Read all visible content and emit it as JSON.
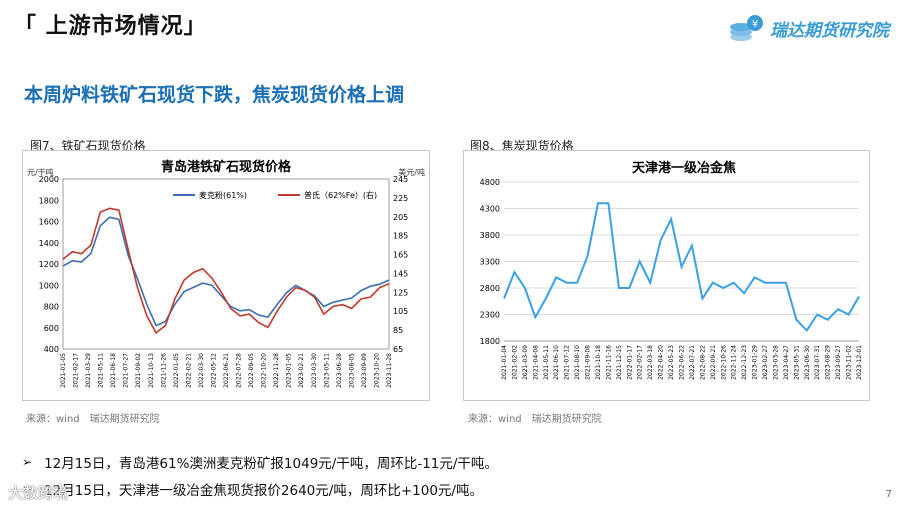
{
  "header": {
    "section_title": "「 上游市场情况」",
    "brand_name": "瑞达期货研究院"
  },
  "headline": "本周炉料铁矿石现货下跌，焦炭现货价格上调",
  "fig7": {
    "label": "图7、铁矿石现货价格",
    "source": "来源：wind　瑞达期货研究院"
  },
  "fig8": {
    "label": "图8、焦炭现货价格",
    "source": "来源：wind　瑞达期货研究院"
  },
  "bullets": [
    "12月15日，青岛港61%澳洲麦克粉矿报1049元/干吨，周环比-11元/干吨。",
    "12月15日，天津港一级冶金焦现货报价2640元/吨，周环比+100元/吨。"
  ],
  "page_number": "7",
  "watermark": "大数跨境",
  "chart_data": [
    {
      "type": "line",
      "title": "青岛港铁矿石现货价格",
      "ylabel": "元/干吨",
      "y2label": "美元/吨",
      "ylim": [
        400,
        2000
      ],
      "y2lim": [
        65,
        245
      ],
      "yticks": [
        400,
        600,
        800,
        1000,
        1200,
        1400,
        1600,
        1800,
        2000
      ],
      "y2ticks": [
        65,
        85,
        105,
        125,
        145,
        165,
        185,
        205,
        225,
        245
      ],
      "legend_position": "top",
      "grid": false,
      "x": [
        "2021-01-05",
        "2021-02-05",
        "2021-03-05",
        "2021-04-05",
        "2021-05-05",
        "2021-06-05",
        "2021-07-05",
        "2021-08-05",
        "2021-09-05",
        "2021-10-05",
        "2021-11-05",
        "2021-12-05",
        "2022-01-05",
        "2022-02-05",
        "2022-03-05",
        "2022-04-05",
        "2022-05-05",
        "2022-06-05",
        "2022-07-05",
        "2022-08-05",
        "2022-09-05",
        "2022-10-05",
        "2022-11-05",
        "2022-12-05",
        "2023-01-05",
        "2023-02-05",
        "2023-03-05",
        "2023-04-05",
        "2023-05-05",
        "2023-06-05",
        "2023-07-05",
        "2023-08-05",
        "2023-09-05",
        "2023-10-05",
        "2023-11-05",
        "2023-12-15"
      ],
      "xticks": [
        "2021-01-05",
        "2021-02-17",
        "2021-03-29",
        "2021-05-11",
        "2021-06-18",
        "2021-07-27",
        "2021-09-02",
        "2021-10-13",
        "2021-11-26",
        "2022-01-05",
        "2022-02-21",
        "2022-03-30",
        "2022-05-12",
        "2022-06-21",
        "2022-07-28",
        "2022-09-05",
        "2022-10-20",
        "2022-11-28",
        "2023-01-05",
        "2023-02-21",
        "2023-03-30",
        "2023-05-11",
        "2023-06-28",
        "2023-08-05",
        "2023-09-09",
        "2023-10-20",
        "2023-11-28"
      ],
      "series": [
        {
          "name": "麦克粉(61%)",
          "color": "#3a6fb5",
          "axis": "left",
          "values": [
            1180,
            1230,
            1220,
            1300,
            1560,
            1640,
            1620,
            1280,
            1060,
            820,
            620,
            660,
            820,
            940,
            980,
            1020,
            1000,
            900,
            800,
            760,
            770,
            720,
            700,
            820,
            930,
            1000,
            950,
            900,
            800,
            840,
            860,
            880,
            950,
            990,
            1010,
            1049
          ]
        },
        {
          "name": "普氏（62%Fe）(右)",
          "color": "#c0392b",
          "axis": "right",
          "values": [
            160,
            168,
            166,
            175,
            210,
            214,
            212,
            170,
            130,
            100,
            82,
            90,
            118,
            138,
            146,
            150,
            140,
            125,
            108,
            100,
            102,
            93,
            88,
            105,
            120,
            130,
            127,
            120,
            102,
            110,
            112,
            108,
            118,
            120,
            130,
            134
          ]
        }
      ]
    },
    {
      "type": "line",
      "title": "天津港一级冶金焦",
      "ylim": [
        1800,
        4800
      ],
      "yticks": [
        1800,
        2300,
        2800,
        3300,
        3800,
        4300,
        4800
      ],
      "grid": true,
      "x": [
        "2021-01-04",
        "2021-02-02",
        "2021-03-09",
        "2021-04-08",
        "2021-05-11",
        "2021-06-10",
        "2021-07-12",
        "2021-08-10",
        "2021-09-08",
        "2021-10-18",
        "2021-11-16",
        "2021-12-15",
        "2022-01-17",
        "2022-02-17",
        "2022-03-18",
        "2022-04-20",
        "2022-05-23",
        "2022-06-22",
        "2022-07-21",
        "2022-08-22",
        "2022-09-21",
        "2022-10-26",
        "2022-11-24",
        "2022-12-23",
        "2023-01-29",
        "2023-02-27",
        "2023-03-28",
        "2023-04-27",
        "2023-05-31",
        "2023-06-30",
        "2023-07-31",
        "2023-08-29",
        "2023-09-27",
        "2023-11-02",
        "2023-12-01"
      ],
      "xticks": [
        "2021-01-04",
        "2021-02-02",
        "2021-03-09",
        "2021-04-08",
        "2021-05-11",
        "2021-06-10",
        "2021-07-12",
        "2021-08-10",
        "2021-09-08",
        "2021-10-18",
        "2021-11-16",
        "2021-12-15",
        "2022-01-17",
        "2022-02-17",
        "2022-03-18",
        "2022-04-20",
        "2022-05-23",
        "2022-06-22",
        "2022-07-21",
        "2022-08-22",
        "2022-09-21",
        "2022-10-26",
        "2022-11-24",
        "2022-12-23",
        "2023-01-29",
        "2023-02-27",
        "2023-03-28",
        "2023-04-27",
        "2023-05-31",
        "2023-06-30",
        "2023-07-31",
        "2023-08-29",
        "2023-09-27",
        "2023-11-02",
        "2023-12-01"
      ],
      "series": [
        {
          "name": "天津港一级冶金焦",
          "color": "#3aa0e8",
          "axis": "left",
          "values": [
            2600,
            3100,
            2800,
            2250,
            2600,
            3000,
            2900,
            2900,
            3400,
            4400,
            4400,
            2800,
            2800,
            3300,
            2900,
            3700,
            4100,
            3200,
            3600,
            2600,
            2900,
            2800,
            2900,
            2700,
            3000,
            2900,
            2900,
            2900,
            2200,
            2000,
            2300,
            2200,
            2400,
            2300,
            2640
          ]
        }
      ]
    }
  ]
}
